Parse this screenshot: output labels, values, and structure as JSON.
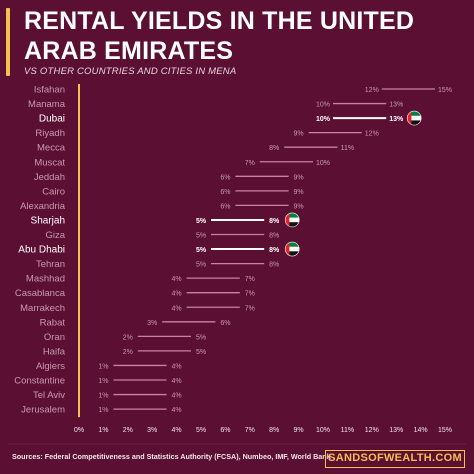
{
  "header": {
    "title": "RENTAL YIELDS IN THE UNITED ARAB EMIRATES",
    "subtitle": "VS OTHER COUNTRIES AND CITIES IN MENA"
  },
  "footer": {
    "source": "Sources: Federal Competitiveness and Statistics Authority (FCSA), Numbeo, IMF, World Bank",
    "brand": "SANDSOFWEALTH.COM"
  },
  "colors": {
    "background": "#5b0f33",
    "range_line": "#c9829f",
    "highlight_line": "#ffffff",
    "axis_line": "#f2c14e",
    "label": "#c99aae",
    "highlight_label": "#ffffff",
    "brand": "#f2c14e"
  },
  "chart_data": {
    "type": "dumbbell",
    "xlim": [
      0,
      15
    ],
    "x_unit": "%",
    "x_ticks": [
      "0%",
      "1%",
      "2%",
      "3%",
      "4%",
      "5%",
      "6%",
      "7%",
      "8%",
      "9%",
      "10%",
      "11%",
      "12%",
      "13%",
      "14%",
      "15%"
    ],
    "rows": [
      {
        "city": "Isfahan",
        "low": 12,
        "high": 15,
        "low_label": "12%",
        "high_label": "15%",
        "highlight": false
      },
      {
        "city": "Manama",
        "low": 10,
        "high": 13,
        "low_label": "10%",
        "high_label": "13%",
        "highlight": false
      },
      {
        "city": "Dubai",
        "low": 10,
        "high": 13,
        "low_label": "10%",
        "high_label": "13%",
        "highlight": true
      },
      {
        "city": "Riyadh",
        "low": 9,
        "high": 12,
        "low_label": "9%",
        "high_label": "12%",
        "highlight": false
      },
      {
        "city": "Mecca",
        "low": 8,
        "high": 11,
        "low_label": "8%",
        "high_label": "11%",
        "highlight": false
      },
      {
        "city": "Muscat",
        "low": 7,
        "high": 10,
        "low_label": "7%",
        "high_label": "10%",
        "highlight": false
      },
      {
        "city": "Jeddah",
        "low": 6,
        "high": 9,
        "low_label": "6%",
        "high_label": "9%",
        "highlight": false
      },
      {
        "city": "Cairo",
        "low": 6,
        "high": 9,
        "low_label": "6%",
        "high_label": "9%",
        "highlight": false
      },
      {
        "city": "Alexandria",
        "low": 6,
        "high": 9,
        "low_label": "6%",
        "high_label": "9%",
        "highlight": false
      },
      {
        "city": "Sharjah",
        "low": 5,
        "high": 8,
        "low_label": "5%",
        "high_label": "8%",
        "highlight": true
      },
      {
        "city": "Giza",
        "low": 5,
        "high": 8,
        "low_label": "5%",
        "high_label": "8%",
        "highlight": false
      },
      {
        "city": "Abu Dhabi",
        "low": 5,
        "high": 8,
        "low_label": "5%",
        "high_label": "8%",
        "highlight": true
      },
      {
        "city": "Tehran",
        "low": 5,
        "high": 8,
        "low_label": "5%",
        "high_label": "8%",
        "highlight": false
      },
      {
        "city": "Mashhad",
        "low": 4,
        "high": 7,
        "low_label": "4%",
        "high_label": "7%",
        "highlight": false
      },
      {
        "city": "Casablanca",
        "low": 4,
        "high": 7,
        "low_label": "4%",
        "high_label": "7%",
        "highlight": false
      },
      {
        "city": "Marrakech",
        "low": 4,
        "high": 7,
        "low_label": "4%",
        "high_label": "7%",
        "highlight": false
      },
      {
        "city": "Rabat",
        "low": 3,
        "high": 6,
        "low_label": "3%",
        "high_label": "6%",
        "highlight": false
      },
      {
        "city": "Oran",
        "low": 2,
        "high": 5,
        "low_label": "2%",
        "high_label": "5%",
        "highlight": false
      },
      {
        "city": "Haifa",
        "low": 2,
        "high": 5,
        "low_label": "2%",
        "high_label": "5%",
        "highlight": false
      },
      {
        "city": "Algiers",
        "low": 1,
        "high": 4,
        "low_label": "1%",
        "high_label": "4%",
        "highlight": false
      },
      {
        "city": "Constantine",
        "low": 1,
        "high": 4,
        "low_label": "1%",
        "high_label": "4%",
        "highlight": false
      },
      {
        "city": "Tel Aviv",
        "low": 1,
        "high": 4,
        "low_label": "1%",
        "high_label": "4%",
        "highlight": false
      },
      {
        "city": "Jerusalem",
        "low": 1,
        "high": 4,
        "low_label": "1%",
        "high_label": "4%",
        "highlight": false
      }
    ],
    "flag_icon": "uae-flag-icon"
  }
}
